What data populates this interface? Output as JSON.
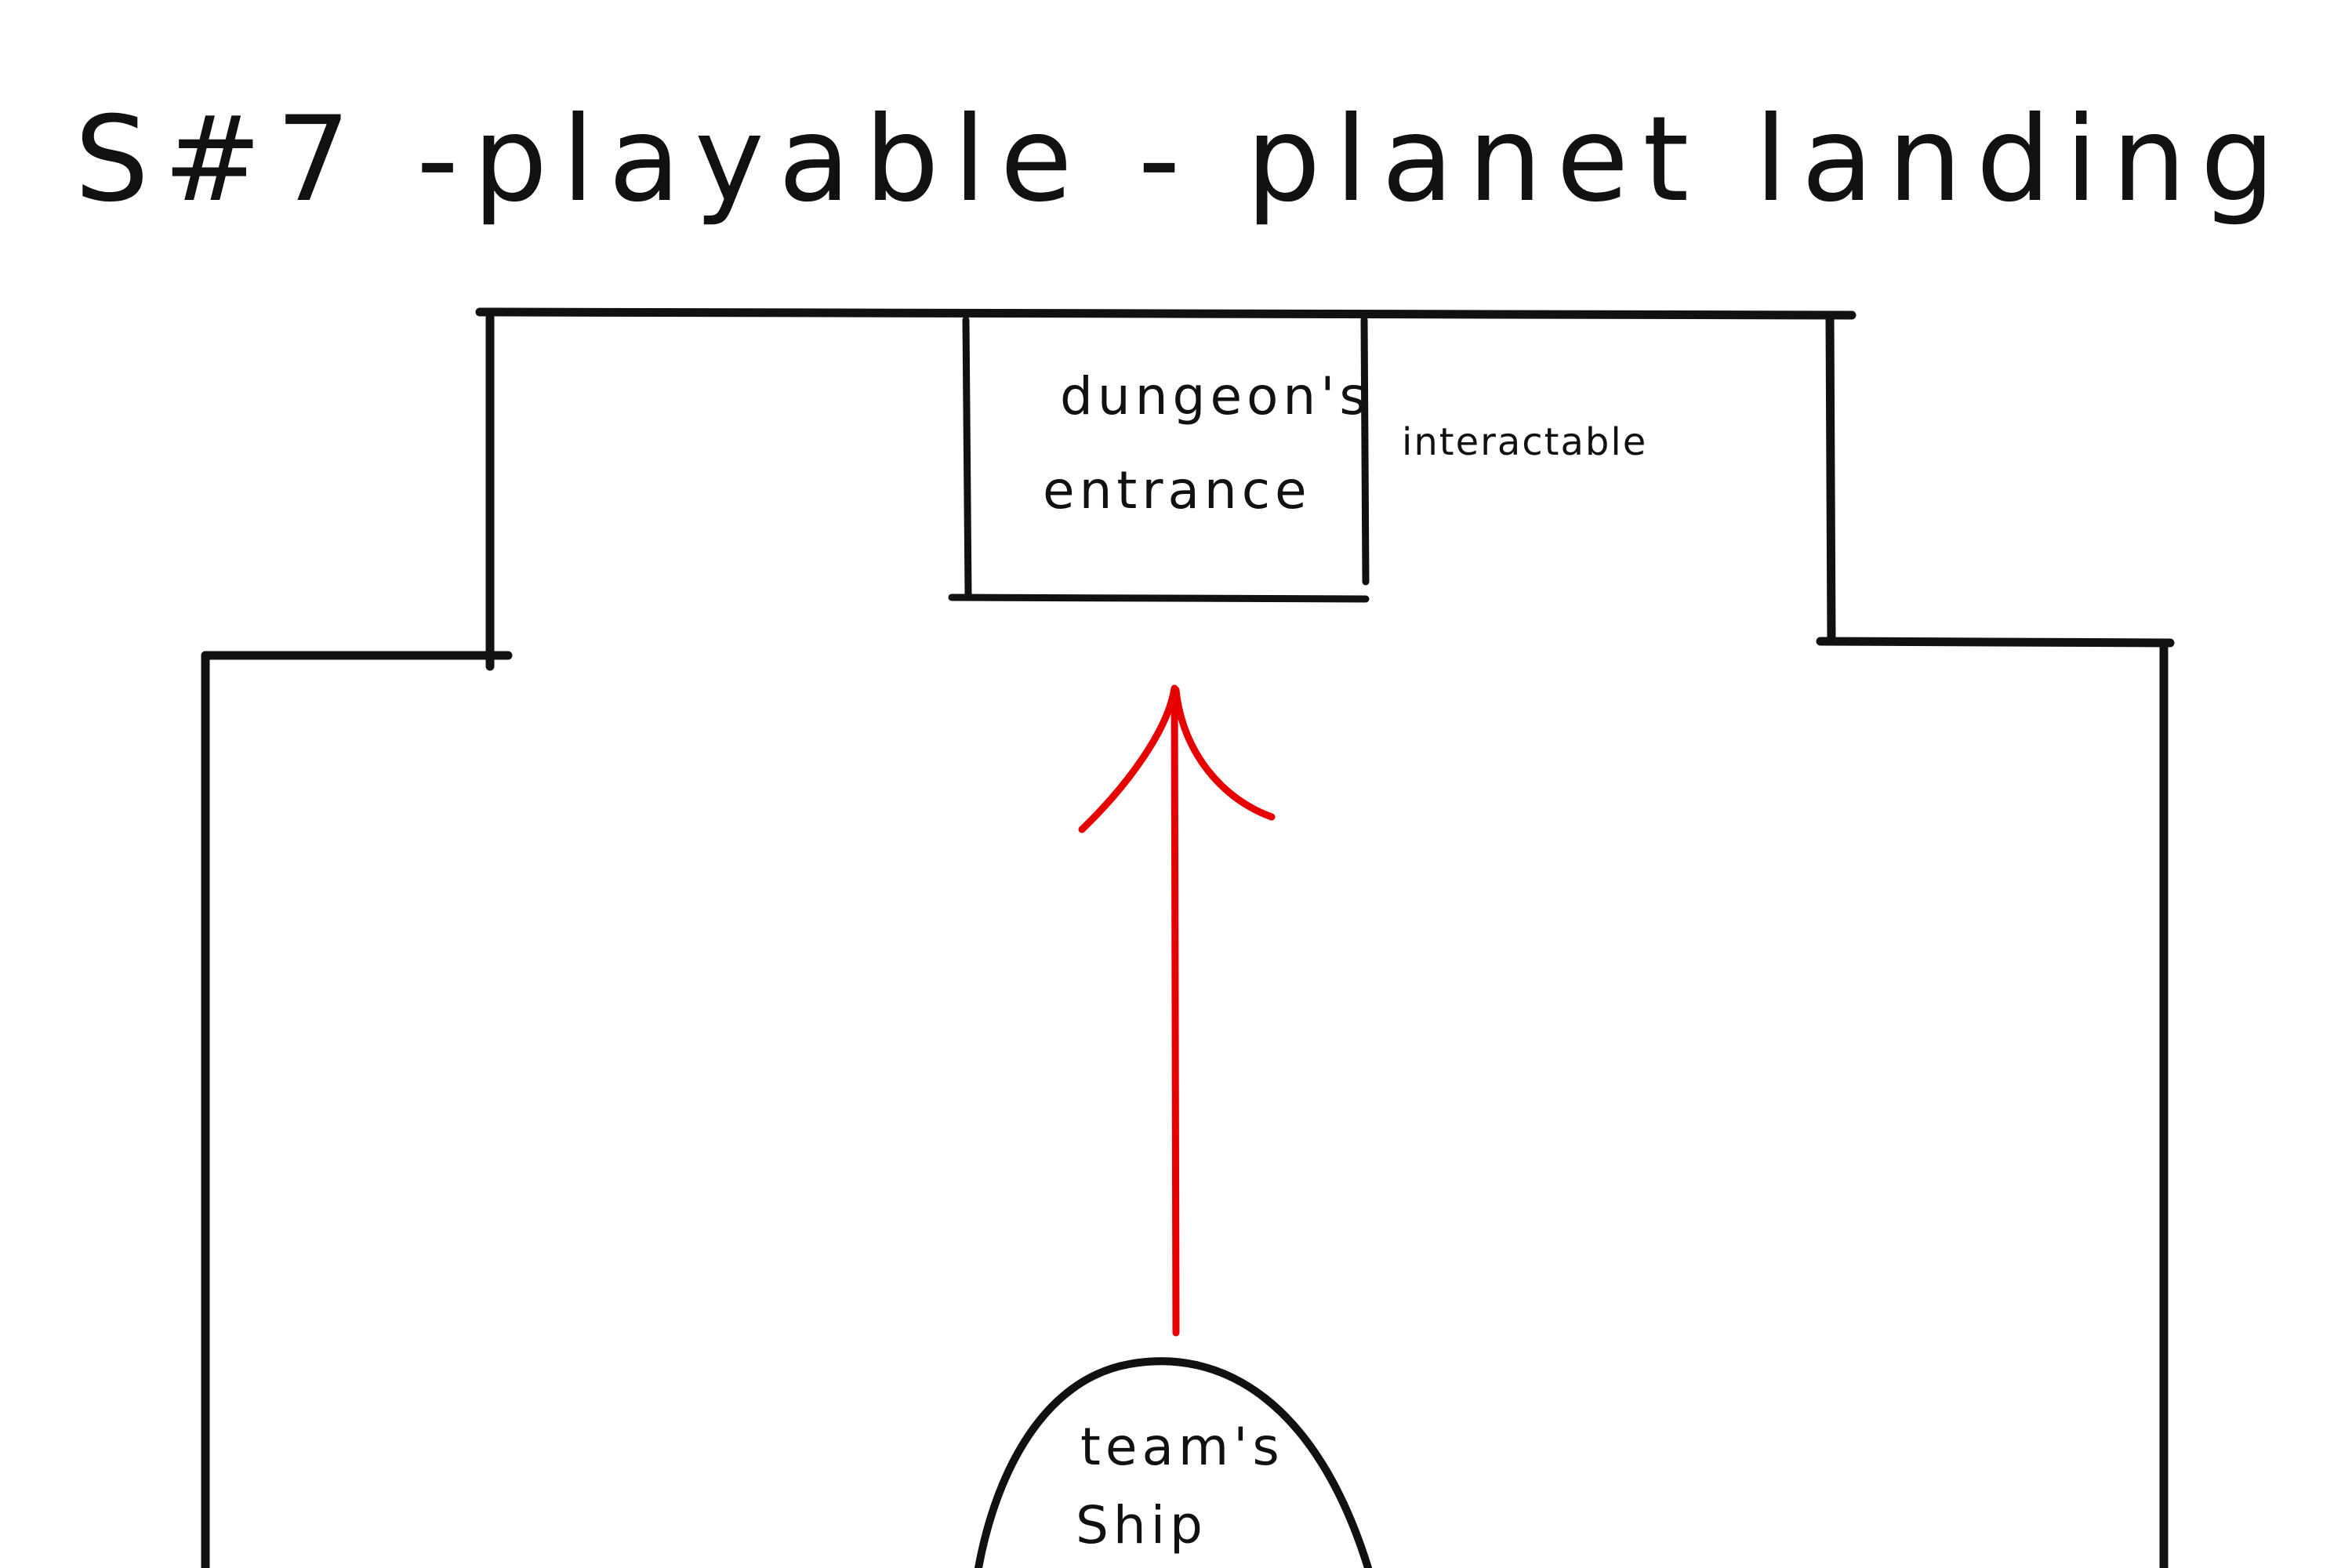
{
  "title": "S#7 -playable - planet landing",
  "dungeon_entrance": {
    "line1": "dungeon's",
    "line2": "entrance",
    "note": "interactable"
  },
  "ship": {
    "line1": "team's",
    "line2": "Ship"
  },
  "colors": {
    "ink": "#111111",
    "arrow": "#e60000",
    "paper": "#ffffff"
  }
}
